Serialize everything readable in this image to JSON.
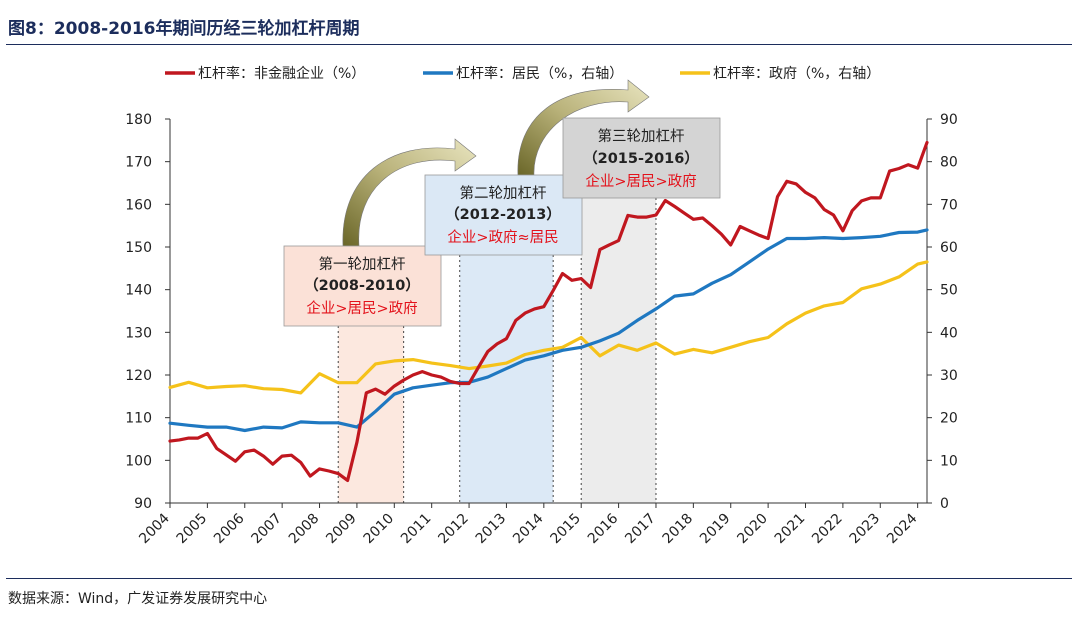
{
  "title": "图8：2008-2016年期间历经三轮加杠杆周期",
  "source": "数据来源：Wind，广发证券发展研究中心",
  "colors": {
    "nonfin": "#c0171f",
    "household": "#1f78c1",
    "gov": "#f5c21a",
    "text": "#1c2d5c",
    "red": "#e3121b"
  },
  "chart_data": {
    "type": "line",
    "x_ticks": [
      "2004",
      "2005",
      "2006",
      "2007",
      "2008",
      "2009",
      "2010",
      "2011",
      "2012",
      "2013",
      "2014",
      "2015",
      "2016",
      "2017",
      "2018",
      "2019",
      "2020",
      "2021",
      "2022",
      "2023",
      "2024"
    ],
    "y_left": {
      "range": [
        90,
        180
      ],
      "ticks": [
        "90",
        "100",
        "110",
        "120",
        "130",
        "140",
        "150",
        "160",
        "170",
        "180"
      ]
    },
    "y_right": {
      "range": [
        0,
        90
      ],
      "ticks": [
        "0",
        "10",
        "20",
        "30",
        "40",
        "50",
        "60",
        "70",
        "80",
        "90"
      ]
    },
    "legend": [
      "杠杆率：非金融企业（%）",
      "杠杆率：居民（%，右轴）",
      "杠杆率：政府（%，右轴）"
    ],
    "series": [
      {
        "name": "杠杆率：非金融企业（%）",
        "axis": "left",
        "x": [
          2004.0,
          2004.25,
          2004.5,
          2004.75,
          2005.0,
          2005.25,
          2005.5,
          2005.75,
          2006.0,
          2006.25,
          2006.5,
          2006.75,
          2007.0,
          2007.25,
          2007.5,
          2007.75,
          2008.0,
          2008.25,
          2008.5,
          2008.75,
          2009.0,
          2009.25,
          2009.5,
          2009.75,
          2010.0,
          2010.25,
          2010.5,
          2010.75,
          2011.0,
          2011.25,
          2011.5,
          2011.75,
          2012.0,
          2012.25,
          2012.5,
          2012.75,
          2013.0,
          2013.25,
          2013.5,
          2013.75,
          2014.0,
          2014.25,
          2014.5,
          2014.75,
          2015.0,
          2015.25,
          2015.5,
          2015.75,
          2016.0,
          2016.25,
          2016.5,
          2016.75,
          2017.0,
          2017.25,
          2017.5,
          2017.75,
          2018.0,
          2018.25,
          2018.5,
          2018.75,
          2019.0,
          2019.25,
          2019.5,
          2019.75,
          2020.0,
          2020.25,
          2020.5,
          2020.75,
          2021.0,
          2021.25,
          2021.5,
          2021.75,
          2022.0,
          2022.25,
          2022.5,
          2022.75,
          2023.0,
          2023.25,
          2023.5,
          2023.75,
          2024.0,
          2024.25
        ],
        "values": [
          104.5,
          104.8,
          105.2,
          105.2,
          106.3,
          102.8,
          101.3,
          99.8,
          102.0,
          102.4,
          101.0,
          99.1,
          101.0,
          101.2,
          99.5,
          96.3,
          98.0,
          97.5,
          96.9,
          95.3,
          104.2,
          115.8,
          116.7,
          115.5,
          117.4,
          118.8,
          120.0,
          120.8,
          120.0,
          119.5,
          118.5,
          118.0,
          118.0,
          121.8,
          125.5,
          127.3,
          128.5,
          132.8,
          134.5,
          135.5,
          136.0,
          139.8,
          143.8,
          142.2,
          142.6,
          140.5,
          149.4,
          150.5,
          151.5,
          157.4,
          157.0,
          157.0,
          157.5,
          160.9,
          159.5,
          158.0,
          156.5,
          156.8,
          155.0,
          153.0,
          150.5,
          154.8,
          153.8,
          152.8,
          152.0,
          161.8,
          165.4,
          164.8,
          162.8,
          161.5,
          158.8,
          157.5,
          153.8,
          158.5,
          160.8,
          161.5,
          161.5,
          167.8,
          168.4,
          169.3,
          168.5,
          174.5
        ]
      },
      {
        "name": "杠杆率：居民（%，右轴）",
        "axis": "right",
        "x": [
          2004.0,
          2004.5,
          2005.0,
          2005.5,
          2006.0,
          2006.5,
          2007.0,
          2007.5,
          2008.0,
          2008.5,
          2009.0,
          2009.5,
          2010.0,
          2010.5,
          2011.0,
          2011.5,
          2012.0,
          2012.5,
          2013.0,
          2013.5,
          2014.0,
          2014.5,
          2015.0,
          2015.5,
          2016.0,
          2016.5,
          2017.0,
          2017.5,
          2018.0,
          2018.5,
          2019.0,
          2019.5,
          2020.0,
          2020.5,
          2021.0,
          2021.5,
          2022.0,
          2022.5,
          2023.0,
          2023.5,
          2024.0,
          2024.25
        ],
        "values": [
          18.7,
          18.2,
          17.8,
          17.8,
          17.0,
          17.8,
          17.6,
          19.0,
          18.8,
          18.8,
          17.8,
          21.5,
          25.5,
          27.0,
          27.6,
          28.2,
          28.3,
          29.5,
          31.5,
          33.5,
          34.5,
          35.8,
          36.5,
          38.0,
          39.8,
          42.8,
          45.5,
          48.5,
          49.0,
          51.5,
          53.5,
          56.5,
          59.5,
          62.0,
          62.0,
          62.2,
          62.0,
          62.2,
          62.5,
          63.4,
          63.5,
          64.0
        ]
      },
      {
        "name": "杠杆率：政府（%，右轴）",
        "axis": "right",
        "x": [
          2004.0,
          2004.5,
          2005.0,
          2005.5,
          2006.0,
          2006.5,
          2007.0,
          2007.5,
          2008.0,
          2008.5,
          2009.0,
          2009.5,
          2010.0,
          2010.5,
          2011.0,
          2011.5,
          2012.0,
          2012.5,
          2013.0,
          2013.5,
          2014.0,
          2014.5,
          2015.0,
          2015.5,
          2016.0,
          2016.5,
          2017.0,
          2017.5,
          2018.0,
          2018.5,
          2019.0,
          2019.5,
          2020.0,
          2020.5,
          2021.0,
          2021.5,
          2022.0,
          2022.5,
          2023.0,
          2023.5,
          2024.0,
          2024.25
        ],
        "values": [
          27.1,
          28.3,
          27.0,
          27.3,
          27.5,
          26.8,
          26.6,
          25.8,
          30.3,
          28.2,
          28.2,
          32.6,
          33.3,
          33.6,
          32.8,
          32.2,
          31.5,
          32.1,
          32.8,
          34.8,
          35.8,
          36.5,
          38.8,
          34.5,
          37.0,
          35.8,
          37.5,
          34.9,
          36.0,
          35.2,
          36.5,
          37.8,
          38.8,
          42.0,
          44.5,
          46.2,
          47.0,
          50.2,
          51.3,
          53.0,
          56.0,
          56.5
        ]
      }
    ],
    "annotations": [
      {
        "title": "第一轮加杠杆",
        "period": "（2008-2010）",
        "order": "企业>居民>政府",
        "shade": [
          2008.5,
          2010.25
        ]
      },
      {
        "title": "第二轮加杠杆",
        "period": "（2012-2013）",
        "order": "企业>政府≈居民",
        "shade": [
          2011.75,
          2014.25
        ]
      },
      {
        "title": "第三轮加杠杆",
        "period": "（2015-2016）",
        "order": "企业>居民>政府",
        "shade": [
          2015.0,
          2017.0
        ]
      }
    ]
  }
}
